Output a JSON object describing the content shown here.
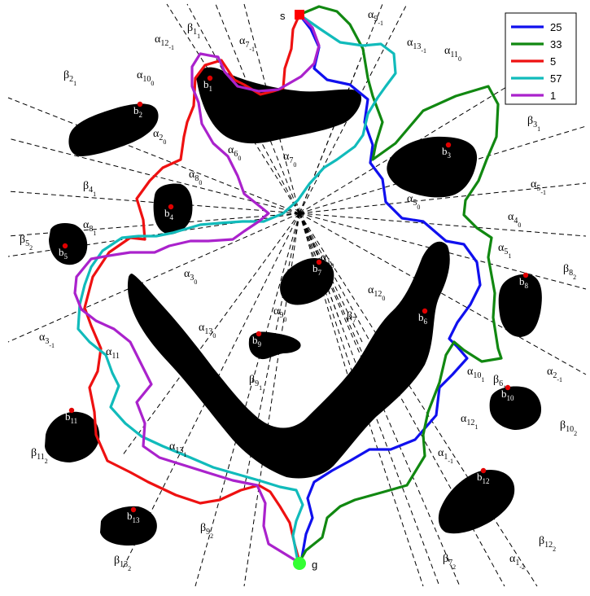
{
  "start_label": "s",
  "goal_label": "g",
  "colors": {
    "obstacle": "#000000",
    "ray": "#000000",
    "marker": "#e00000",
    "start": "#ff0000",
    "goal": "#33ff33"
  },
  "legend": [
    {
      "label": "25",
      "color": "#1010ee"
    },
    {
      "label": "33",
      "color": "#118811"
    },
    {
      "label": "5",
      "color": "#ee1111"
    },
    {
      "label": "57",
      "color": "#11bbbb"
    },
    {
      "label": "1",
      "color": "#aa22cc"
    }
  ],
  "obstacle_labels": [
    {
      "base": "b",
      "sub": "1"
    },
    {
      "base": "b",
      "sub": "2"
    },
    {
      "base": "b",
      "sub": "3"
    },
    {
      "base": "b",
      "sub": "4"
    },
    {
      "base": "b",
      "sub": "5"
    },
    {
      "base": "b",
      "sub": "6"
    },
    {
      "base": "b",
      "sub": "7"
    },
    {
      "base": "b",
      "sub": "8"
    },
    {
      "base": "b",
      "sub": "9"
    },
    {
      "base": "b",
      "sub": "10"
    },
    {
      "base": "b",
      "sub": "11"
    },
    {
      "base": "b",
      "sub": "12"
    },
    {
      "base": "b",
      "sub": "13"
    }
  ],
  "ray_labels": [
    {
      "base": "β",
      "sub": "1",
      "sub2": "1"
    },
    {
      "base": "α",
      "sub": "12",
      "sub2": "-1"
    },
    {
      "base": "α",
      "sub": "7",
      "sub2": "-1"
    },
    {
      "base": "α",
      "sub": "9",
      "sub2": "-1"
    },
    {
      "base": "α",
      "sub": "13",
      "sub2": "-1"
    },
    {
      "base": "α",
      "sub": "11",
      "sub2": "0"
    },
    {
      "base": "β",
      "sub": "2",
      "sub2": "1"
    },
    {
      "base": "α",
      "sub": "10",
      "sub2": "0"
    },
    {
      "base": "α",
      "sub": "2",
      "sub2": "0"
    },
    {
      "base": "α",
      "sub": "6",
      "sub2": "0"
    },
    {
      "base": "α",
      "sub": "7",
      "sub2": "0"
    },
    {
      "base": "α",
      "sub": "8",
      "sub2": "0"
    },
    {
      "base": "β",
      "sub": "3",
      "sub2": "1"
    },
    {
      "base": "β",
      "sub": "4",
      "sub2": "1"
    },
    {
      "base": "α",
      "sub": "5",
      "sub2": "-1"
    },
    {
      "base": "α",
      "sub": "5",
      "sub2": "0"
    },
    {
      "base": "α",
      "sub": "5",
      "sub2": "1"
    },
    {
      "base": "α",
      "sub": "4",
      "sub2": "0"
    },
    {
      "base": "β",
      "sub": "5",
      "sub2": "2"
    },
    {
      "base": "α",
      "sub": "8",
      "sub2": "1"
    },
    {
      "base": "α",
      "sub": "1",
      "sub2": "0"
    },
    {
      "base": "β",
      "sub": "8",
      "sub2": "2"
    },
    {
      "base": "α",
      "sub": "3",
      "sub2": "0"
    },
    {
      "base": "α",
      "sub": "12",
      "sub2": "0"
    },
    {
      "base": "α",
      "sub": "9",
      "sub2": "0"
    },
    {
      "base": "β",
      "sub": "7",
      "sub2": ""
    },
    {
      "base": "α",
      "sub": "13",
      "sub2": "0"
    },
    {
      "base": "α",
      "sub": "3",
      "sub2": "-1"
    },
    {
      "base": "α",
      "sub": "11",
      "sub2": ""
    },
    {
      "base": "α",
      "sub": "2",
      "sub2": "-1"
    },
    {
      "base": "β",
      "sub": "6",
      "sub2": "1"
    },
    {
      "base": "α",
      "sub": "10",
      "sub2": "1"
    },
    {
      "base": "β",
      "sub": "9",
      "sub2": "1"
    },
    {
      "base": "β",
      "sub": "10",
      "sub2": "2"
    },
    {
      "base": "α",
      "sub": "12",
      "sub2": "1"
    },
    {
      "base": "α",
      "sub": "1",
      "sub2": "-1"
    },
    {
      "base": "β",
      "sub": "11",
      "sub2": "2"
    },
    {
      "base": "α",
      "sub": "13",
      "sub2": "1"
    },
    {
      "base": "β",
      "sub": "9",
      "sub2": "2"
    },
    {
      "base": "β",
      "sub": "12",
      "sub2": "2"
    },
    {
      "base": "β",
      "sub": "13",
      "sub2": "2"
    },
    {
      "base": "β",
      "sub": "7",
      "sub2": "2"
    },
    {
      "base": "α",
      "sub": "1",
      "sub2": "-2"
    }
  ]
}
